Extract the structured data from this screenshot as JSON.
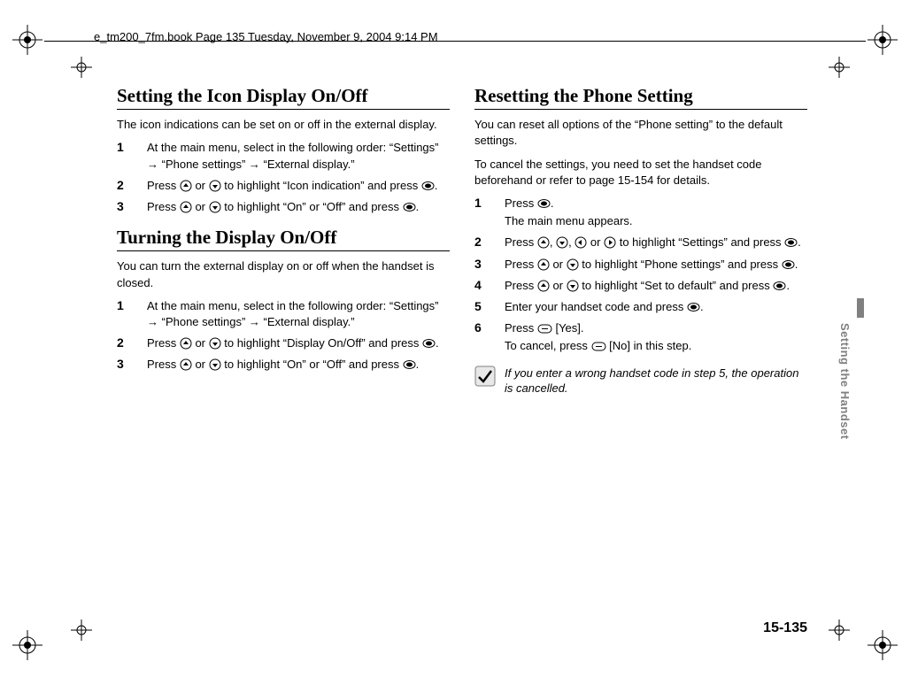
{
  "header_line": "e_tm200_7fm.book  Page 135  Tuesday, November 9, 2004  9:14 PM",
  "side_tab": "Setting the Handset",
  "page_number": "15-135",
  "colors": {
    "text": "#000000",
    "background": "#ffffff",
    "tab_gray": "#808080",
    "rule": "#000000"
  },
  "typography": {
    "heading_family": "Times New Roman",
    "heading_size_pt": 16,
    "body_family": "Arial",
    "body_size_pt": 10,
    "step_num_weight": "bold"
  },
  "left_col": {
    "sections": [
      {
        "heading": "Setting the Icon Display On/Off",
        "intro": "The icon indications can be set on or off in the external display.",
        "steps": [
          {
            "n": "1",
            "body_html": "At the main menu, select in the following order: “Settings” → “Phone settings” → “External display.”"
          },
          {
            "n": "2",
            "body_html": "Press {UP} or {DOWN} to highlight “Icon indication” and press {OK}."
          },
          {
            "n": "3",
            "body_html": "Press {UP} or {DOWN} to highlight “On” or “Off” and press {OK}."
          }
        ]
      },
      {
        "heading": "Turning the Display On/Off",
        "intro": "You can turn the external display on or off when the handset is closed.",
        "steps": [
          {
            "n": "1",
            "body_html": "At the main menu, select in the following order: “Settings” → “Phone settings” → “External display.”"
          },
          {
            "n": "2",
            "body_html": "Press {UP} or {DOWN} to highlight “Display On/Off” and press {OK}."
          },
          {
            "n": "3",
            "body_html": "Press {UP} or {DOWN} to highlight “On” or “Off” and press {OK}."
          }
        ]
      }
    ]
  },
  "right_col": {
    "sections": [
      {
        "heading": "Resetting the Phone Setting",
        "intro": "You can reset all options of the “Phone setting” to the default settings.",
        "intro2": "To cancel the settings, you need to set the handset code beforehand or refer to page 15-154 for details.",
        "steps": [
          {
            "n": "1",
            "body_html": "Press {OK}.",
            "sub": "The main menu appears."
          },
          {
            "n": "2",
            "body_html": "Press {UP}, {DOWN}, {LEFT} or {RIGHT} to highlight “Settings” and press {OK}."
          },
          {
            "n": "3",
            "body_html": "Press {UP} or {DOWN} to highlight “Phone settings” and press {OK}."
          },
          {
            "n": "4",
            "body_html": "Press {UP} or {DOWN} to highlight “Set to default” and press {OK}."
          },
          {
            "n": "5",
            "body_html": "Enter your handset code and press {OK}."
          },
          {
            "n": "6",
            "body_html": "Press {SOFT} [Yes].",
            "sub": "To cancel, press {SOFT} [No] in this step."
          }
        ],
        "note": "If you enter a wrong handset code in step 5, the operation is cancelled."
      }
    ]
  },
  "icons": {
    "UP": {
      "type": "nav-round",
      "glyph": "up"
    },
    "DOWN": {
      "type": "nav-round",
      "glyph": "down"
    },
    "LEFT": {
      "type": "nav-round",
      "glyph": "left"
    },
    "RIGHT": {
      "type": "nav-round",
      "glyph": "right"
    },
    "OK": {
      "type": "oval-solid"
    },
    "SOFT": {
      "type": "oval-outline"
    }
  }
}
